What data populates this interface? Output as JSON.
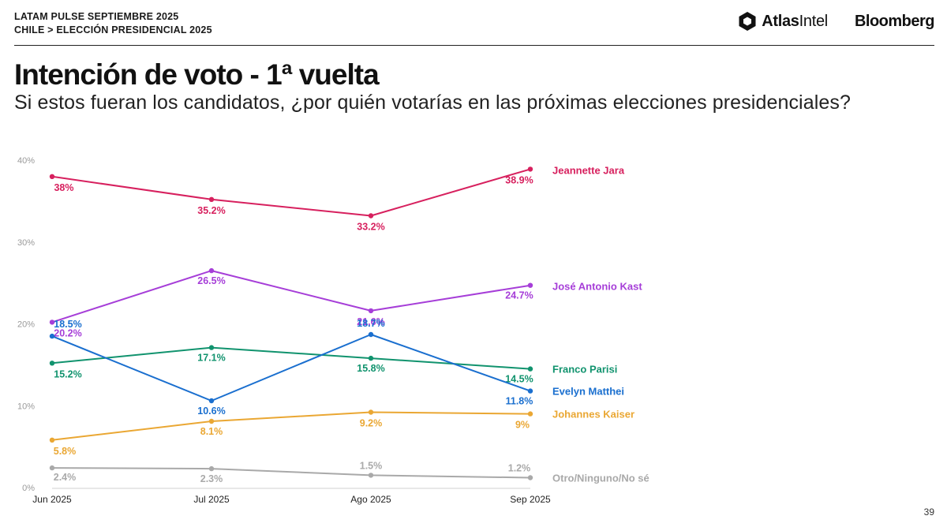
{
  "header": {
    "kicker_line1": "LATAM PULSE SEPTIEMBRE 2025",
    "kicker_line2": "CHILE > ELECCIÓN PRESIDENCIAL 2025",
    "brand_atlas_bold": "Atlas",
    "brand_atlas_regular": "Intel",
    "brand_bloomberg": "Bloomberg"
  },
  "page_number": "39",
  "chart_data": {
    "type": "line",
    "title": "Intención de voto - 1ª vuelta",
    "subtitle": "Si estos fueran los candidatos, ¿por quién votarías en las próximas elecciones presidenciales?",
    "xlabel": "",
    "ylabel": "",
    "categories": [
      "Jun 2025",
      "Jul 2025",
      "Ago 2025",
      "Sep 2025"
    ],
    "ylim": [
      0,
      40
    ],
    "yticks": [
      0,
      10,
      20,
      30,
      40
    ],
    "ytick_labels": [
      "0%",
      "10%",
      "20%",
      "30%",
      "40%"
    ],
    "grid": false,
    "legend": "right, at line ends",
    "series": [
      {
        "name": "Jeannette Jara",
        "color": "#d7205e",
        "values": [
          38,
          35.2,
          33.2,
          38.9
        ],
        "labels": [
          "38%",
          "35.2%",
          "33.2%",
          "38.9%"
        ]
      },
      {
        "name": "José Antonio Kast",
        "color": "#a63ed8",
        "values": [
          20.2,
          26.5,
          21.6,
          24.7
        ],
        "labels": [
          "20.2%",
          "26.5%",
          "21.6%",
          "24.7%"
        ]
      },
      {
        "name": "Franco Parisi",
        "color": "#11936e",
        "values": [
          15.2,
          17.1,
          15.8,
          14.5
        ],
        "labels": [
          "15.2%",
          "17.1%",
          "15.8%",
          "14.5%"
        ]
      },
      {
        "name": "Evelyn Matthei",
        "color": "#1a6fcf",
        "values": [
          18.5,
          10.6,
          18.7,
          11.8
        ],
        "labels": [
          "18.5%",
          "10.6%",
          "18.7%",
          "11.8%"
        ]
      },
      {
        "name": "Johannes Kaiser",
        "color": "#eaa733",
        "values": [
          5.8,
          8.1,
          9.2,
          9
        ],
        "labels": [
          "5.8%",
          "8.1%",
          "9.2%",
          "9%"
        ]
      },
      {
        "name": "Otro/Ninguno/No sé",
        "color": "#a9a9a9",
        "values": [
          2.4,
          2.3,
          1.5,
          1.2
        ],
        "labels": [
          "2.4%",
          "2.3%",
          "1.5%",
          "1.2%"
        ]
      }
    ]
  }
}
